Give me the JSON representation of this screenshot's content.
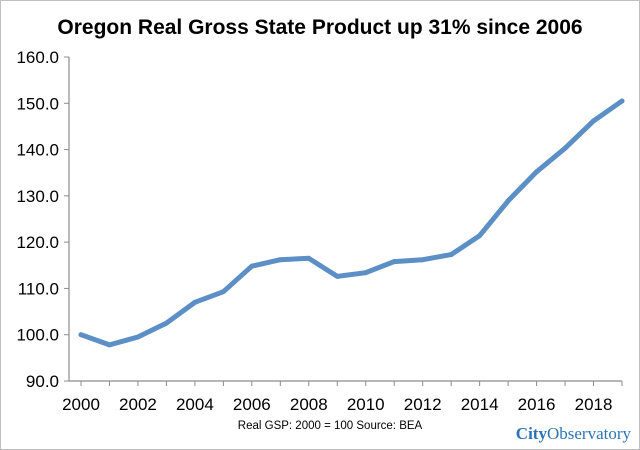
{
  "chart_data": {
    "type": "line",
    "title": "Oregon Real Gross State Product up 31% since 2006",
    "xlabel": "",
    "ylabel": "",
    "x": [
      2000,
      2001,
      2002,
      2003,
      2004,
      2005,
      2006,
      2007,
      2008,
      2009,
      2010,
      2011,
      2012,
      2013,
      2014,
      2015,
      2016,
      2017,
      2018,
      2019
    ],
    "series": [
      {
        "values": [
          100.0,
          97.8,
          99.5,
          102.5,
          107.0,
          109.3,
          114.8,
          116.2,
          116.5,
          112.6,
          113.4,
          115.8,
          116.2,
          117.3,
          121.4,
          128.9,
          135.2,
          140.3,
          146.2,
          150.5
        ]
      }
    ],
    "x_ticks": [
      "2000",
      "2002",
      "2004",
      "2006",
      "2008",
      "2010",
      "2012",
      "2014",
      "2016",
      "2018"
    ],
    "y_ticks": [
      "90.0",
      "100.0",
      "110.0",
      "120.0",
      "130.0",
      "140.0",
      "150.0",
      "160.0"
    ],
    "xlim": [
      2000,
      2019
    ],
    "ylim": [
      90,
      160
    ],
    "grid": false,
    "legend": "none",
    "line_color": "#5b8fc5",
    "axis_color": "#8c8c8c",
    "source_note": "Real GSP:  2000 = 100 Source:  BEA",
    "brand": {
      "part1": "City",
      "part2": "Observatory",
      "color": "#2e74b5"
    }
  }
}
